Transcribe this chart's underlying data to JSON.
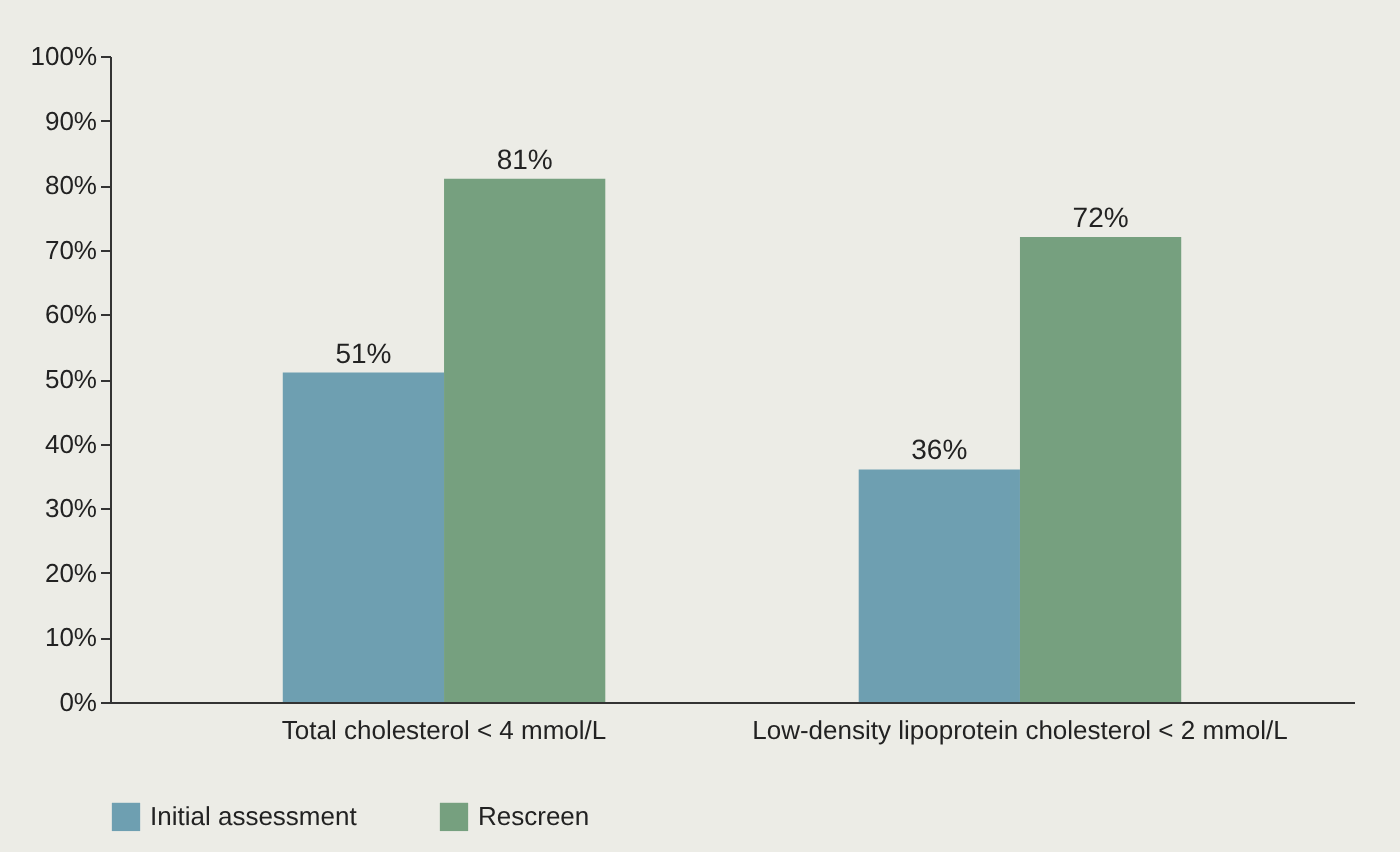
{
  "chart_data": {
    "type": "bar",
    "categories": [
      "Total cholesterol < 4 mmol/L",
      "Low-density lipoprotein cholesterol < 2 mmol/L"
    ],
    "series": [
      {
        "name": "Initial assessment",
        "color": "#6e9fb1",
        "values": [
          51,
          36
        ],
        "value_labels": [
          "51%",
          "36%"
        ]
      },
      {
        "name": "Rescreen",
        "color": "#76a07f",
        "values": [
          81,
          72
        ],
        "value_labels": [
          "81%",
          "72%"
        ]
      }
    ],
    "ylim": [
      0,
      100
    ],
    "yticks": [
      {
        "value": 0,
        "label": "0%"
      },
      {
        "value": 10,
        "label": "10%"
      },
      {
        "value": 20,
        "label": "20%"
      },
      {
        "value": 30,
        "label": "30%"
      },
      {
        "value": 40,
        "label": "40%"
      },
      {
        "value": 50,
        "label": "50%"
      },
      {
        "value": 60,
        "label": "60%"
      },
      {
        "value": 70,
        "label": "70%"
      },
      {
        "value": 80,
        "label": "80%"
      },
      {
        "value": 90,
        "label": "90%"
      },
      {
        "value": 100,
        "label": "100%"
      }
    ],
    "legend": "bottom"
  }
}
